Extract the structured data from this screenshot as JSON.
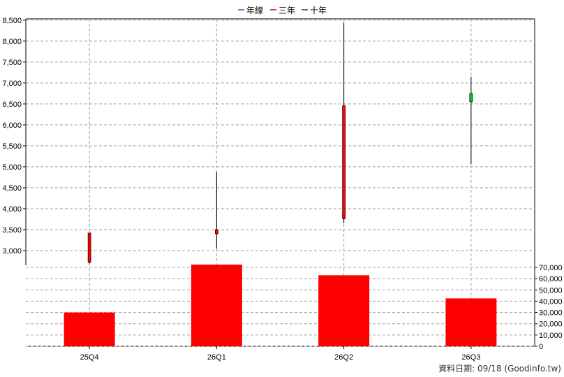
{
  "chart_data": {
    "type": "candlestick",
    "title": "",
    "categories": [
      "25Q4",
      "26Q1",
      "26Q2",
      "26Q3"
    ],
    "legend": {
      "placement": "top-center",
      "entries": [
        {
          "label": "年線",
          "color": "#1f5fbf"
        },
        {
          "label": "三年",
          "color": "#d40000"
        },
        {
          "label": "十年",
          "color": "#8b008b"
        }
      ]
    },
    "price": {
      "ylim": [
        2650,
        8530
      ],
      "ticks": [
        "3,000",
        "3,500",
        "4,000",
        "4,500",
        "5,000",
        "5,500",
        "6,000",
        "6,500",
        "7,000",
        "7,500",
        "8,000",
        "8,500"
      ],
      "tick_values": [
        3000,
        3500,
        4000,
        4500,
        5000,
        5500,
        6000,
        6500,
        7000,
        7500,
        8000,
        8500
      ],
      "candles": [
        {
          "open": 2720,
          "close": 3420,
          "high": 3430,
          "low": 2690,
          "color": "#ff0000"
        },
        {
          "open": 3400,
          "close": 3500,
          "high": 4880,
          "low": 3050,
          "color": "#ff0000"
        },
        {
          "open": 3760,
          "close": 6460,
          "high": 8440,
          "low": 3650,
          "color": "#ff0000"
        },
        {
          "open": 6750,
          "close": 6550,
          "high": 7150,
          "low": 5060,
          "color": "#00cc00"
        }
      ]
    },
    "volume": {
      "ylim": [
        0,
        70000
      ],
      "ticks": [
        "0",
        "10,000",
        "20,000",
        "30,000",
        "40,000",
        "50,000",
        "60,000",
        "70,000"
      ],
      "tick_values": [
        0,
        10000,
        20000,
        30000,
        40000,
        50000,
        60000,
        70000
      ],
      "values": [
        30000,
        74000,
        63000,
        42500
      ],
      "color": "#ff0000"
    },
    "grid": true
  },
  "footer": {
    "source": "資料日期: 09/18  (Goodinfo.tw)"
  }
}
